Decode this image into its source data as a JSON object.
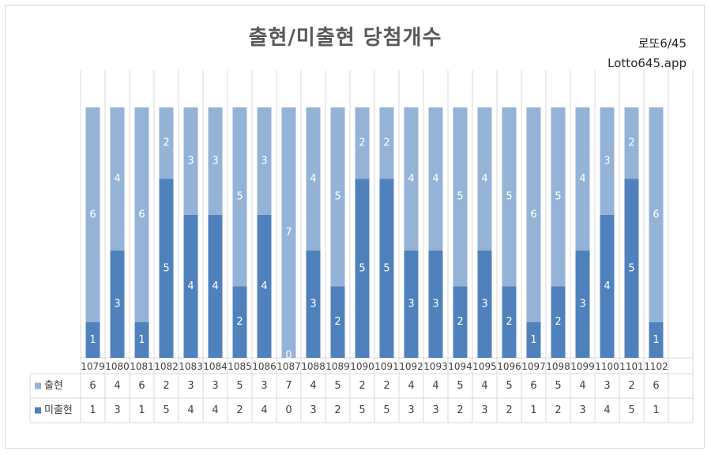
{
  "header": {
    "title": "출현/미출현 당첨개수",
    "brand_line1": "로또6/45",
    "brand_line2": "Lotto645.app"
  },
  "colors": {
    "appeared": "#95b3d7",
    "not_appeared": "#4f81bd",
    "grid": "#d9d9d9",
    "label": "#ffffff"
  },
  "chart_data": {
    "type": "bar",
    "stacked": true,
    "categories": [
      "1079",
      "1080",
      "1081",
      "1082",
      "1083",
      "1084",
      "1085",
      "1086",
      "1087",
      "1088",
      "1089",
      "1090",
      "1091",
      "1092",
      "1093",
      "1094",
      "1095",
      "1096",
      "1097",
      "1098",
      "1099",
      "1100",
      "1101",
      "1102"
    ],
    "series": [
      {
        "name": "미출현",
        "color": "#4f81bd",
        "values": [
          1,
          3,
          1,
          5,
          4,
          4,
          2,
          4,
          0,
          3,
          2,
          5,
          5,
          3,
          3,
          2,
          3,
          2,
          1,
          2,
          3,
          4,
          5,
          1
        ]
      },
      {
        "name": "출현",
        "color": "#95b3d7",
        "values": [
          6,
          4,
          6,
          2,
          3,
          3,
          5,
          3,
          7,
          4,
          5,
          2,
          2,
          4,
          4,
          5,
          4,
          5,
          6,
          5,
          4,
          3,
          2,
          6
        ]
      }
    ],
    "ylim": [
      0,
      7
    ],
    "legend_position": "data-table",
    "data_table_order": [
      "출현",
      "미출현"
    ],
    "data_labels": true
  }
}
